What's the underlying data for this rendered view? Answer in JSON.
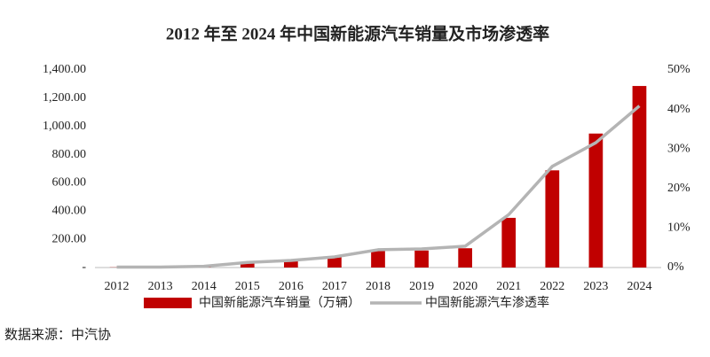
{
  "chart_data": {
    "type": "bar",
    "title": "2012 年至 2024 年中国新能源汽车销量及市场渗透率",
    "source": "数据来源：中汽协",
    "categories": [
      "2012",
      "2013",
      "2014",
      "2015",
      "2016",
      "2017",
      "2018",
      "2019",
      "2020",
      "2021",
      "2022",
      "2023",
      "2024"
    ],
    "series": [
      {
        "name": "中国新能源汽车销量（万辆）",
        "type": "bar",
        "color": "#c00000",
        "values": [
          1.3,
          1.8,
          7.5,
          33.1,
          50.7,
          77.7,
          125.6,
          120.6,
          136.7,
          352.1,
          688.7,
          949.5,
          1286.6
        ]
      },
      {
        "name": "中国新能源汽车渗透率",
        "type": "line",
        "axis": "y2",
        "color": "#b4b4b4",
        "values": [
          0.1,
          0.1,
          0.3,
          1.3,
          1.8,
          2.7,
          4.5,
          4.7,
          5.4,
          13.4,
          25.6,
          31.6,
          40.9
        ]
      }
    ],
    "ylim": [
      0,
      1400
    ],
    "yticks": [
      {
        "value": 0,
        "label": "-"
      },
      {
        "value": 200,
        "label": "200.00"
      },
      {
        "value": 400,
        "label": "400.00"
      },
      {
        "value": 600,
        "label": "600.00"
      },
      {
        "value": 800,
        "label": "800.00"
      },
      {
        "value": 1000,
        "label": "1,000.00"
      },
      {
        "value": 1200,
        "label": "1,200.00"
      },
      {
        "value": 1400,
        "label": "1,400.00"
      }
    ],
    "y2lim": [
      0,
      50
    ],
    "y2ticks": [
      {
        "value": 0,
        "label": "0%"
      },
      {
        "value": 10,
        "label": "10%"
      },
      {
        "value": 20,
        "label": "20%"
      },
      {
        "value": 30,
        "label": "30%"
      },
      {
        "value": 40,
        "label": "40%"
      },
      {
        "value": 50,
        "label": "50%"
      }
    ],
    "grid": false
  }
}
